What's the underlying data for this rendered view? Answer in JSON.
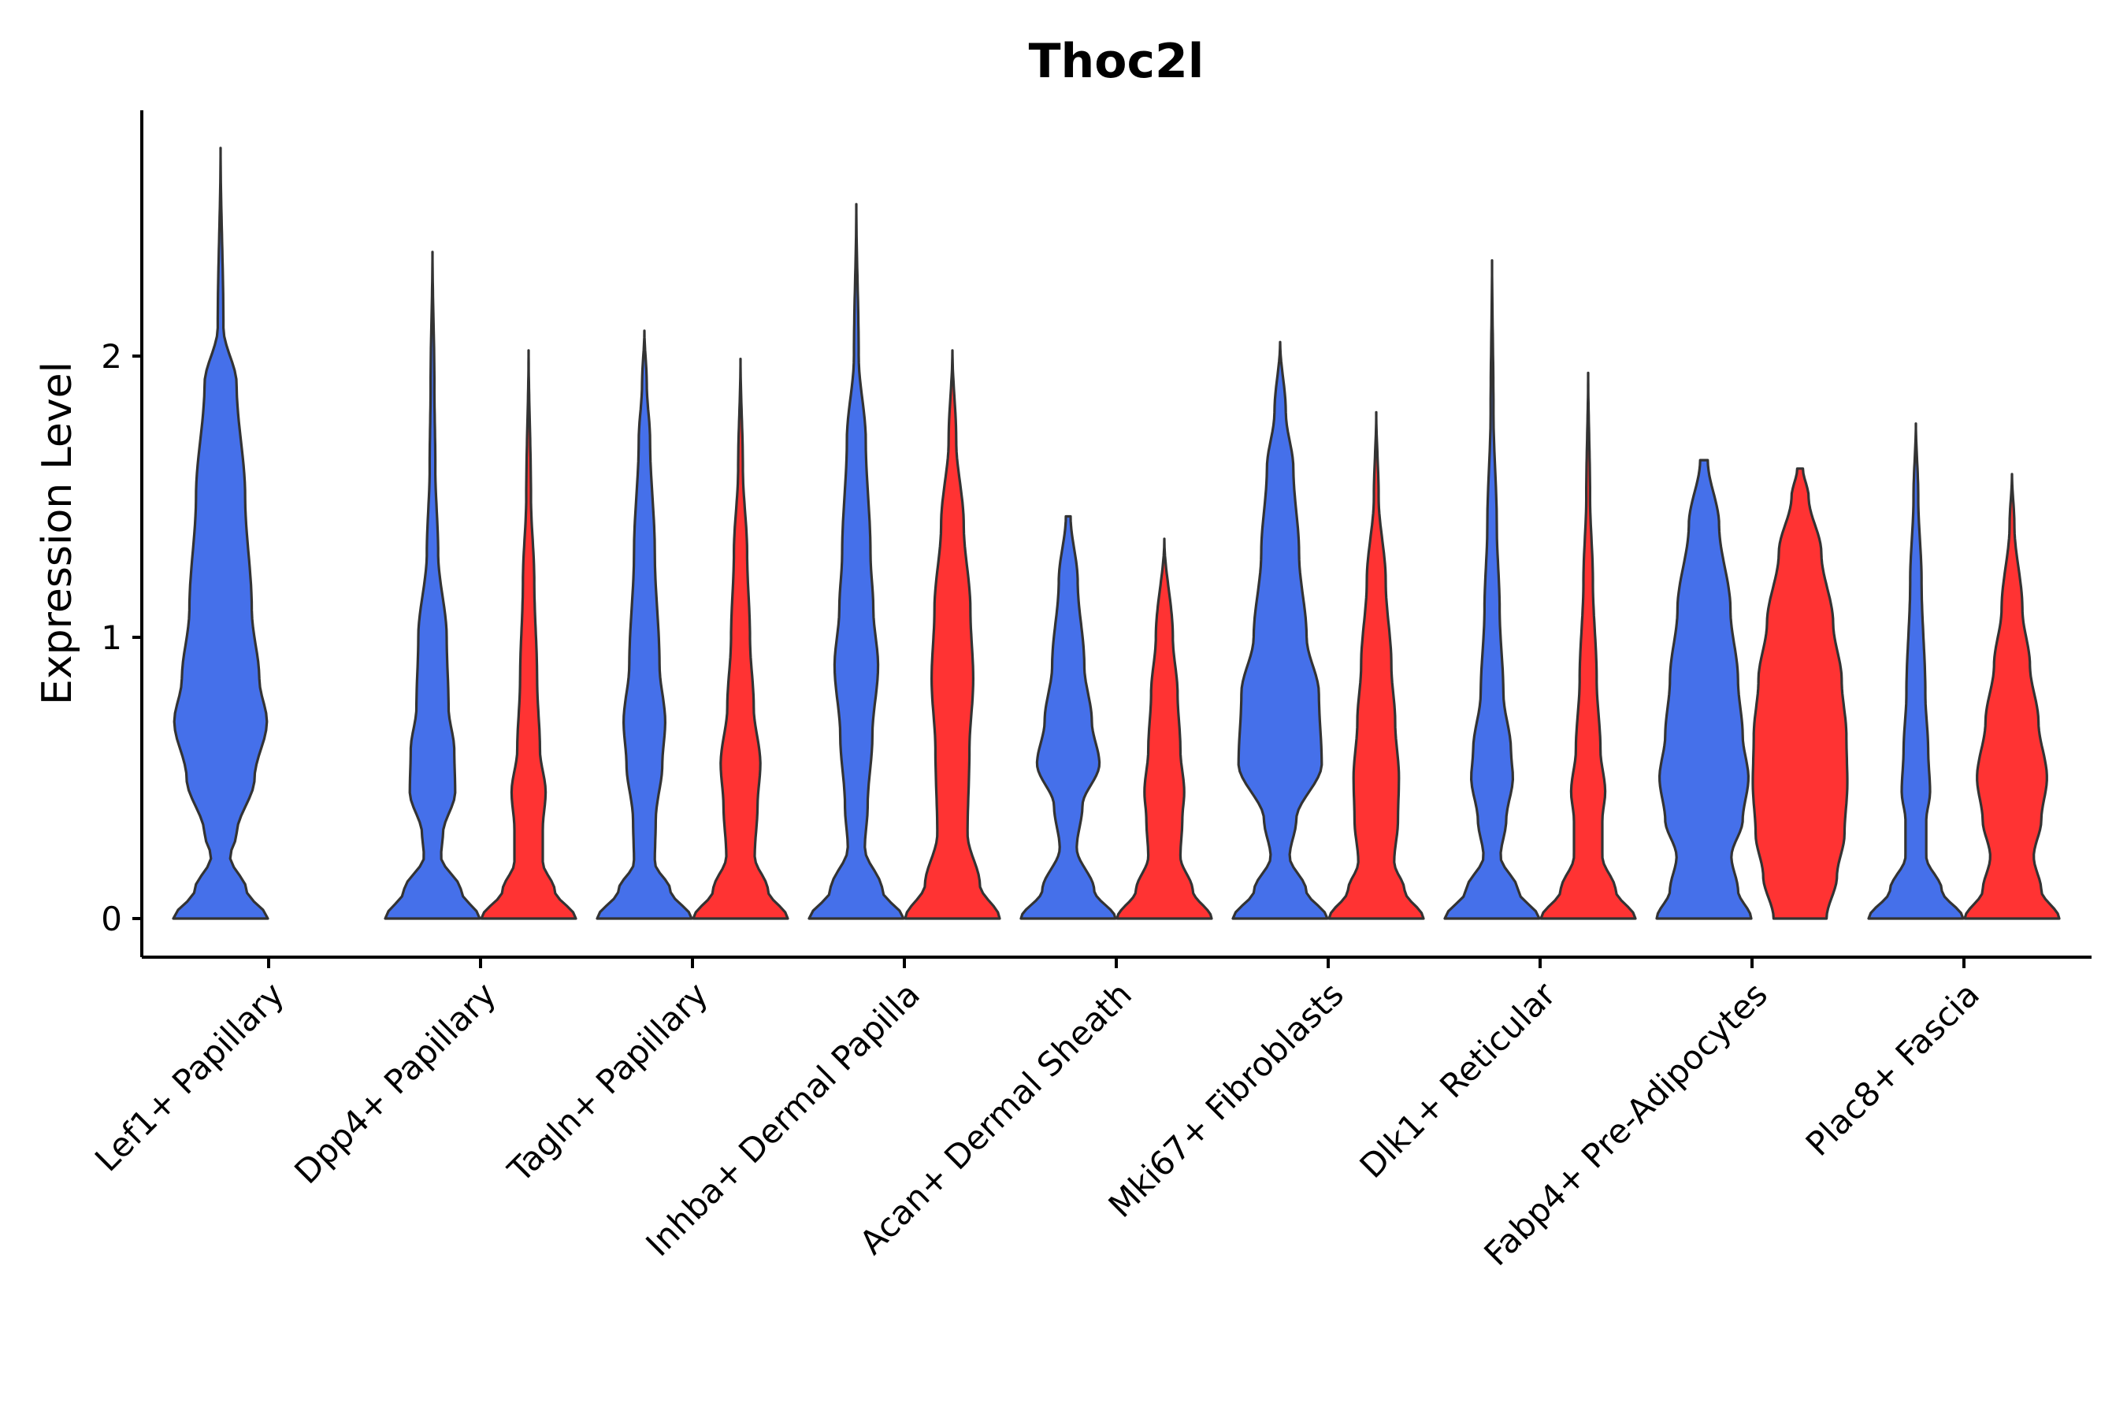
{
  "chart_data": {
    "type": "violin",
    "title": "Thoc2l",
    "xlabel": "",
    "ylabel": "Expression Level",
    "ylim": [
      -0.14,
      2.86
    ],
    "yticks": [
      0,
      1,
      2
    ],
    "colors": {
      "group1": "#4570EA",
      "group2": "#FF3333"
    },
    "categories": [
      "Lef1+ Papillary",
      "Dpp4+ Papillary",
      "Tagln+ Papillary",
      "Inhba+ Dermal Papilla",
      "Acan+ Dermal Sheath",
      "Mki67+ Fibroblasts",
      "Dlk1+ Reticular",
      "Fabp4+ Pre-Adipocytes",
      "Plac8+ Fascia"
    ],
    "series": [
      {
        "name": "group1",
        "color": "#4570EA",
        "violins": [
          {
            "category": "Lef1+ Papillary",
            "max": 2.74,
            "profile": [
              [
                0,
                1.0
              ],
              [
                0.1,
                0.55
              ],
              [
                0.22,
                0.2
              ],
              [
                0.3,
                0.34
              ],
              [
                0.5,
                0.72
              ],
              [
                0.7,
                0.98
              ],
              [
                0.85,
                0.82
              ],
              [
                1.1,
                0.66
              ],
              [
                1.5,
                0.52
              ],
              [
                1.9,
                0.34
              ],
              [
                2.1,
                0.06
              ],
              [
                2.74,
                0.0
              ]
            ]
          },
          {
            "category": "Dpp4+ Papillary",
            "max": 2.37,
            "profile": [
              [
                0,
                1.0
              ],
              [
                0.1,
                0.6
              ],
              [
                0.22,
                0.18
              ],
              [
                0.3,
                0.22
              ],
              [
                0.45,
                0.48
              ],
              [
                0.6,
                0.46
              ],
              [
                0.75,
                0.34
              ],
              [
                1.0,
                0.3
              ],
              [
                1.3,
                0.12
              ],
              [
                1.6,
                0.06
              ],
              [
                1.9,
                0.04
              ],
              [
                2.37,
                0.0
              ]
            ]
          },
          {
            "category": "Tagln+ Papillary",
            "max": 2.09,
            "profile": [
              [
                0,
                1.0
              ],
              [
                0.1,
                0.55
              ],
              [
                0.2,
                0.22
              ],
              [
                0.35,
                0.24
              ],
              [
                0.55,
                0.38
              ],
              [
                0.7,
                0.44
              ],
              [
                0.9,
                0.32
              ],
              [
                1.3,
                0.22
              ],
              [
                1.7,
                0.12
              ],
              [
                1.9,
                0.05
              ],
              [
                2.09,
                0.0
              ]
            ]
          },
          {
            "category": "Inhba+ Dermal Papilla",
            "max": 2.54,
            "profile": [
              [
                0,
                1.0
              ],
              [
                0.1,
                0.55
              ],
              [
                0.25,
                0.18
              ],
              [
                0.4,
                0.24
              ],
              [
                0.65,
                0.34
              ],
              [
                0.9,
                0.46
              ],
              [
                1.1,
                0.36
              ],
              [
                1.3,
                0.3
              ],
              [
                1.7,
                0.2
              ],
              [
                2.0,
                0.05
              ],
              [
                2.54,
                0.0
              ]
            ]
          },
          {
            "category": "Acan+ Dermal Sheath",
            "max": 1.43,
            "profile": [
              [
                0,
                1.0
              ],
              [
                0.1,
                0.55
              ],
              [
                0.25,
                0.18
              ],
              [
                0.4,
                0.3
              ],
              [
                0.55,
                0.66
              ],
              [
                0.7,
                0.5
              ],
              [
                0.9,
                0.34
              ],
              [
                1.2,
                0.2
              ],
              [
                1.43,
                0.05
              ]
            ]
          },
          {
            "category": "Mki67+ Fibroblasts",
            "max": 2.05,
            "profile": [
              [
                0,
                1.0
              ],
              [
                0.1,
                0.55
              ],
              [
                0.22,
                0.2
              ],
              [
                0.35,
                0.34
              ],
              [
                0.55,
                0.88
              ],
              [
                0.8,
                0.82
              ],
              [
                1.0,
                0.56
              ],
              [
                1.3,
                0.4
              ],
              [
                1.6,
                0.28
              ],
              [
                1.8,
                0.12
              ],
              [
                2.05,
                0.0
              ]
            ]
          },
          {
            "category": "Dlk1+ Reticular",
            "max": 2.34,
            "profile": [
              [
                0,
                1.0
              ],
              [
                0.1,
                0.55
              ],
              [
                0.22,
                0.18
              ],
              [
                0.35,
                0.3
              ],
              [
                0.5,
                0.44
              ],
              [
                0.6,
                0.4
              ],
              [
                0.8,
                0.24
              ],
              [
                1.1,
                0.16
              ],
              [
                1.4,
                0.1
              ],
              [
                1.8,
                0.03
              ],
              [
                2.34,
                0.0
              ]
            ]
          },
          {
            "category": "Fabp4+ Pre-Adipocytes",
            "max": 1.63,
            "profile": [
              [
                0,
                1.0
              ],
              [
                0.1,
                0.72
              ],
              [
                0.22,
                0.58
              ],
              [
                0.35,
                0.82
              ],
              [
                0.5,
                0.94
              ],
              [
                0.65,
                0.82
              ],
              [
                0.85,
                0.72
              ],
              [
                1.1,
                0.56
              ],
              [
                1.4,
                0.32
              ],
              [
                1.63,
                0.08
              ]
            ]
          },
          {
            "category": "Plac8+ Fascia",
            "max": 1.76,
            "profile": [
              [
                0,
                1.0
              ],
              [
                0.1,
                0.55
              ],
              [
                0.22,
                0.22
              ],
              [
                0.35,
                0.22
              ],
              [
                0.45,
                0.3
              ],
              [
                0.6,
                0.26
              ],
              [
                0.8,
                0.2
              ],
              [
                1.2,
                0.12
              ],
              [
                1.5,
                0.05
              ],
              [
                1.76,
                0.0
              ]
            ]
          }
        ]
      },
      {
        "name": "group2",
        "color": "#FF3333",
        "violins": [
          {
            "category": "Dpp4+ Papillary",
            "max": 2.02,
            "profile": [
              [
                0,
                1.0
              ],
              [
                0.1,
                0.55
              ],
              [
                0.2,
                0.3
              ],
              [
                0.32,
                0.3
              ],
              [
                0.45,
                0.36
              ],
              [
                0.6,
                0.24
              ],
              [
                0.85,
                0.18
              ],
              [
                1.2,
                0.12
              ],
              [
                1.5,
                0.05
              ],
              [
                2.02,
                0.0
              ]
            ]
          },
          {
            "category": "Tagln+ Papillary",
            "max": 1.99,
            "profile": [
              [
                0,
                1.0
              ],
              [
                0.1,
                0.58
              ],
              [
                0.22,
                0.3
              ],
              [
                0.4,
                0.36
              ],
              [
                0.55,
                0.42
              ],
              [
                0.75,
                0.28
              ],
              [
                1.0,
                0.2
              ],
              [
                1.3,
                0.14
              ],
              [
                1.6,
                0.05
              ],
              [
                1.99,
                0.0
              ]
            ]
          },
          {
            "category": "Inhba+ Dermal Papilla",
            "max": 2.02,
            "profile": [
              [
                0,
                1.0
              ],
              [
                0.12,
                0.58
              ],
              [
                0.3,
                0.32
              ],
              [
                0.6,
                0.36
              ],
              [
                0.85,
                0.44
              ],
              [
                1.1,
                0.38
              ],
              [
                1.4,
                0.24
              ],
              [
                1.7,
                0.08
              ],
              [
                2.02,
                0.0
              ]
            ]
          },
          {
            "category": "Acan+ Dermal Sheath",
            "max": 1.35,
            "profile": [
              [
                0,
                1.0
              ],
              [
                0.1,
                0.6
              ],
              [
                0.22,
                0.34
              ],
              [
                0.35,
                0.38
              ],
              [
                0.45,
                0.42
              ],
              [
                0.6,
                0.34
              ],
              [
                0.8,
                0.28
              ],
              [
                1.0,
                0.18
              ],
              [
                1.35,
                0.0
              ]
            ]
          },
          {
            "category": "Mki67+ Fibroblasts",
            "max": 1.8,
            "profile": [
              [
                0,
                1.0
              ],
              [
                0.1,
                0.6
              ],
              [
                0.2,
                0.38
              ],
              [
                0.35,
                0.46
              ],
              [
                0.5,
                0.48
              ],
              [
                0.7,
                0.4
              ],
              [
                0.9,
                0.32
              ],
              [
                1.2,
                0.2
              ],
              [
                1.5,
                0.05
              ],
              [
                1.8,
                0.0
              ]
            ]
          },
          {
            "category": "Dlk1+ Reticular",
            "max": 1.94,
            "profile": [
              [
                0,
                1.0
              ],
              [
                0.1,
                0.58
              ],
              [
                0.22,
                0.3
              ],
              [
                0.35,
                0.3
              ],
              [
                0.45,
                0.36
              ],
              [
                0.6,
                0.26
              ],
              [
                0.85,
                0.18
              ],
              [
                1.2,
                0.1
              ],
              [
                1.5,
                0.04
              ],
              [
                1.94,
                0.0
              ]
            ]
          },
          {
            "category": "Fabp4+ Pre-Adipocytes",
            "max": 1.6,
            "profile": [
              [
                0,
                0.56
              ],
              [
                0.15,
                0.78
              ],
              [
                0.3,
                0.94
              ],
              [
                0.48,
                1.0
              ],
              [
                0.65,
                0.98
              ],
              [
                0.85,
                0.88
              ],
              [
                1.05,
                0.7
              ],
              [
                1.3,
                0.45
              ],
              [
                1.5,
                0.18
              ],
              [
                1.6,
                0.06
              ]
            ]
          },
          {
            "category": "Plac8+ Fascia",
            "max": 1.58,
            "profile": [
              [
                0,
                1.0
              ],
              [
                0.1,
                0.62
              ],
              [
                0.22,
                0.46
              ],
              [
                0.35,
                0.62
              ],
              [
                0.5,
                0.74
              ],
              [
                0.7,
                0.56
              ],
              [
                0.9,
                0.38
              ],
              [
                1.1,
                0.22
              ],
              [
                1.4,
                0.05
              ],
              [
                1.58,
                0.0
              ]
            ]
          }
        ]
      }
    ]
  }
}
